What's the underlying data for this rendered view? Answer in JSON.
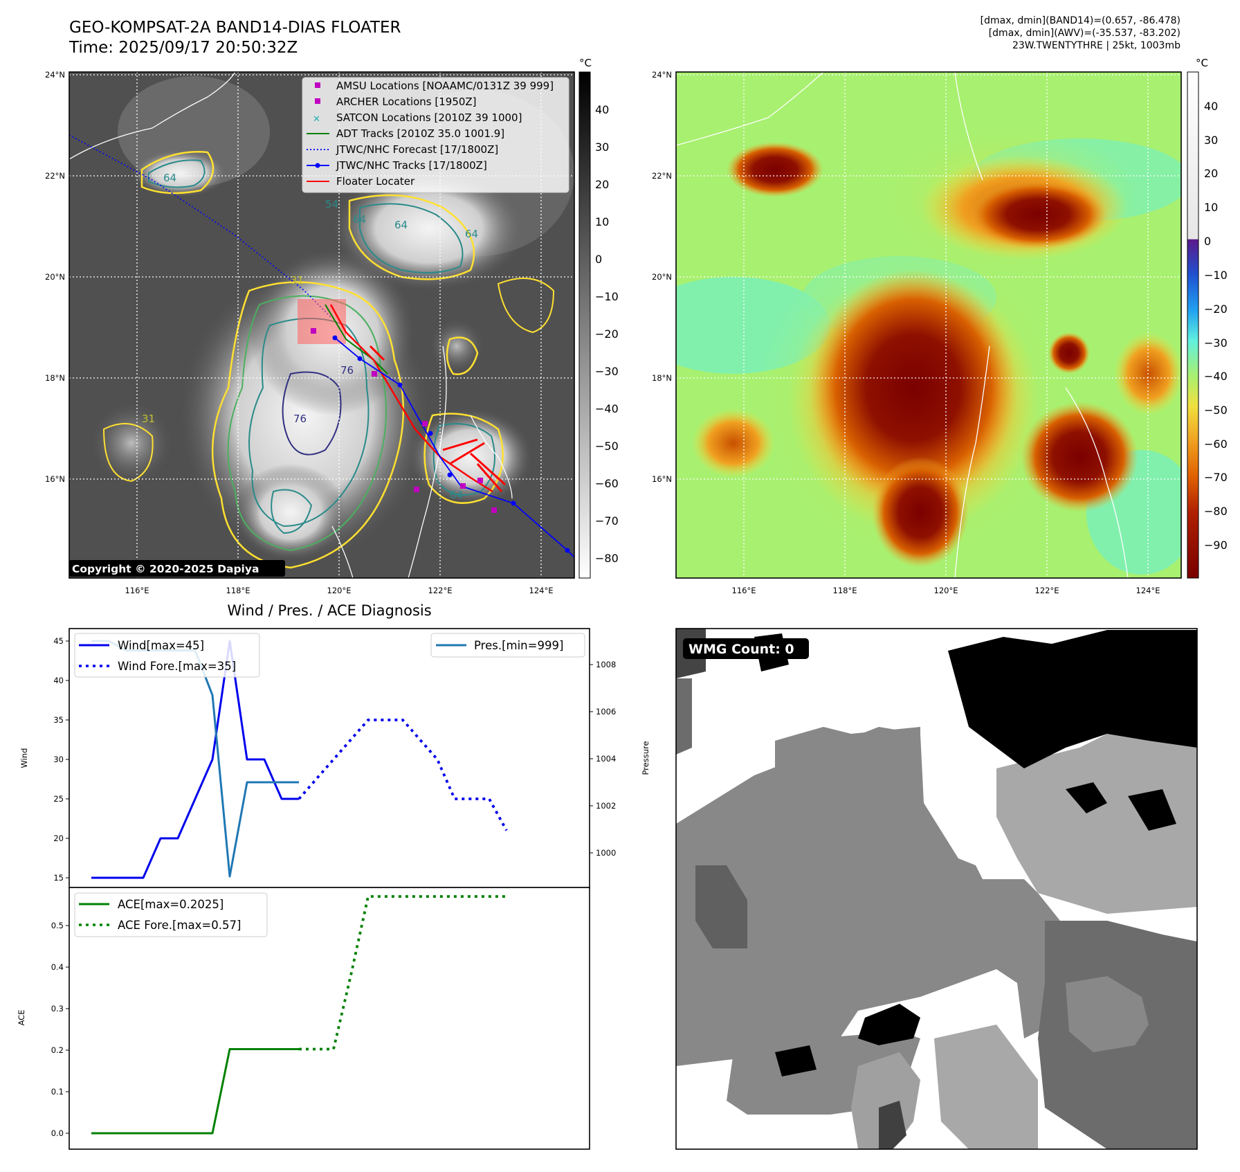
{
  "header": {
    "title_line1": "GEO-KOMPSAT-2A BAND14-DIAS FLOATER",
    "title_line2": "Time: 2025/09/17 20:50:32Z",
    "info_line1": "[dmax, dmin](BAND14)=(0.657, -86.478)",
    "info_line2": "[dmax, dmin](AWV)=(-35.537, -83.202)",
    "info_line3": "23W.TWENTYTHRE | 25kt, 1003mb"
  },
  "maps": {
    "lat_ticks": [
      "24°N",
      "22°N",
      "20°N",
      "18°N",
      "16°N"
    ],
    "lon_ticks": [
      "116°E",
      "118°E",
      "120°E",
      "122°E",
      "124°E"
    ],
    "colorbar_unit": "°C",
    "ir_colorbar_ticks": [
      "40",
      "30",
      "20",
      "10",
      "0",
      "−10",
      "−20",
      "−30",
      "−40",
      "−50",
      "−60",
      "−70",
      "−80"
    ],
    "enh_colorbar_ticks": [
      "40",
      "30",
      "20",
      "10",
      "0",
      "−10",
      "−20",
      "−30",
      "−40",
      "−50",
      "−60",
      "−70",
      "−80",
      "−90"
    ],
    "copyright": "Copyright © 2020-2025 Dapiya",
    "contour_labels": [
      "64",
      "54",
      "64",
      "64",
      "64",
      "76",
      "76",
      "31",
      "31",
      "64"
    ],
    "legend": [
      {
        "label": "AMSU Locations [NOAAMC/0131Z 39 999]",
        "color": "#c000c0",
        "kind": "square"
      },
      {
        "label": "ARCHER Locations [1950Z]",
        "color": "#c000c0",
        "kind": "square"
      },
      {
        "label": "SATCON Locations [2010Z 39 1000]",
        "color": "#20b0b0",
        "kind": "x"
      },
      {
        "label": "ADT Tracks [2010Z 35.0 1001.9]",
        "color": "#008000",
        "kind": "line"
      },
      {
        "label": "JTWC/NHC Forecast [17/1800Z]",
        "color": "#0000ff",
        "kind": "dotted"
      },
      {
        "label": "JTWC/NHC Tracks [17/1800Z]",
        "color": "#0000ff",
        "kind": "linedot"
      },
      {
        "label": "Floater Locater",
        "color": "#ff0000",
        "kind": "line"
      }
    ]
  },
  "diagnosis": {
    "title": "Wind / Pres. / ACE Diagnosis",
    "wind_ylabel": "Wind",
    "pres_ylabel": "Pressure",
    "ace_ylabel": "ACE",
    "wind_ticks": [
      "45",
      "40",
      "35",
      "30",
      "25",
      "20",
      "15"
    ],
    "pres_ticks": [
      "1008",
      "1006",
      "1004",
      "1002",
      "1000"
    ],
    "ace_ticks": [
      "0.5",
      "0.4",
      "0.3",
      "0.2",
      "0.1",
      "0.0"
    ],
    "legend_wind": "Wind[max=45]",
    "legend_wind_fore": "Wind Fore.[max=35]",
    "legend_pres": "Pres.[min=999]",
    "legend_ace": "ACE[max=0.2025]",
    "legend_ace_fore": "ACE Fore.[max=0.57]"
  },
  "wmg": {
    "label": "WMG Count: 0"
  },
  "colors": {
    "wind": "#0000ee",
    "pressure": "#1f77b4",
    "ace": "#008000",
    "floater": "#ff0000",
    "track": "#0000ff"
  },
  "chart_data": [
    {
      "type": "line",
      "title": "Wind / Pres. / ACE Diagnosis",
      "ylabel": "Wind",
      "ylim": [
        14,
        46.5
      ],
      "y2label": "Pressure",
      "y2lim": [
        998.999,
        1009.4
      ],
      "series": [
        {
          "name": "Wind[max=45]",
          "axis": "left",
          "x": [
            0,
            1,
            2,
            3,
            4,
            5,
            6,
            7,
            8,
            9,
            10,
            11,
            12
          ],
          "values": [
            15,
            15,
            15,
            15,
            20,
            20,
            25,
            30,
            45,
            30,
            30,
            25,
            25
          ]
        },
        {
          "name": "Wind Fore.[max=35]",
          "axis": "left",
          "x": [
            12,
            13,
            14,
            15,
            16,
            17,
            18,
            19,
            20,
            21,
            22,
            23,
            24
          ],
          "values": [
            25,
            27.5,
            30,
            32.5,
            35,
            35,
            35,
            32.5,
            30,
            25,
            25,
            25,
            21
          ]
        },
        {
          "name": "Pres.[min=999]",
          "axis": "right",
          "x": [
            0,
            1,
            2,
            3,
            4,
            5,
            6,
            7,
            8,
            9,
            10,
            11,
            12
          ],
          "values": [
            1009,
            1009,
            1008.6,
            1008.6,
            1008.6,
            1008.6,
            1008.6,
            1006.7,
            999,
            1003,
            1003,
            1003,
            1003
          ]
        }
      ]
    },
    {
      "type": "line",
      "ylabel": "ACE",
      "ylim": [
        -0.025,
        0.595
      ],
      "series": [
        {
          "name": "ACE[max=0.2025]",
          "x": [
            0,
            1,
            2,
            3,
            4,
            5,
            6,
            7,
            8,
            9,
            10,
            11,
            12
          ],
          "values": [
            0,
            0,
            0,
            0,
            0,
            0,
            0,
            0,
            0.2025,
            0.2025,
            0.2025,
            0.2025,
            0.2025
          ]
        },
        {
          "name": "ACE Fore.[max=0.57]",
          "x": [
            12,
            13,
            14,
            15,
            16,
            17,
            18,
            19,
            20,
            21,
            22,
            23,
            24
          ],
          "values": [
            0.2025,
            0.2025,
            0.2025,
            0.38,
            0.57,
            0.57,
            0.57,
            0.57,
            0.57,
            0.57,
            0.57,
            0.57,
            0.57
          ]
        }
      ]
    }
  ]
}
